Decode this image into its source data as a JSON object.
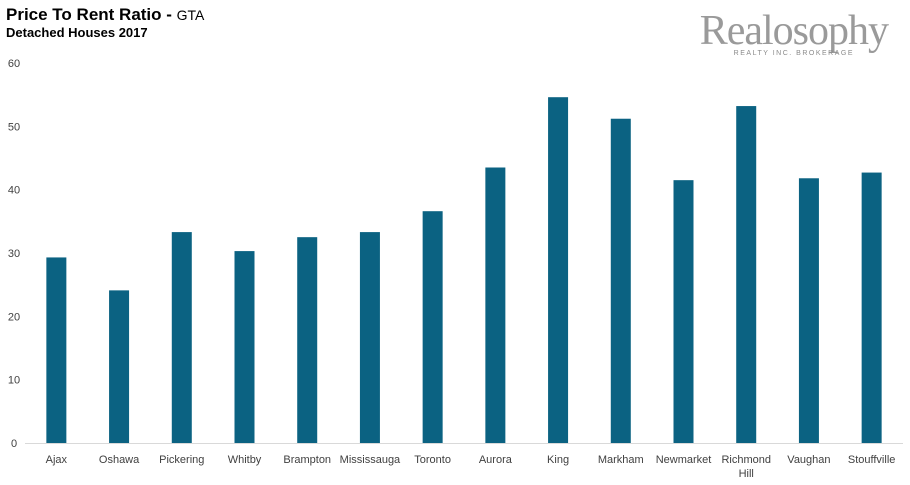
{
  "header": {
    "title": "Price To Rent Ratio - ",
    "title_suffix": "GTA",
    "subtitle": "Detached Houses 2017"
  },
  "logo": {
    "name": "Realosophy",
    "tagline": "REALTY INC. BROKERAGE"
  },
  "colors": {
    "bar": "#0b6282",
    "axis": "#d9d9d9",
    "text": "#404040"
  },
  "chart_data": {
    "type": "bar",
    "title": "Price To Rent Ratio - GTA",
    "subtitle": "Detached Houses 2017",
    "categories": [
      "Ajax",
      "Oshawa",
      "Pickering",
      "Whitby",
      "Brampton",
      "Mississauga",
      "Toronto",
      "Aurora",
      "King",
      "Markham",
      "Newmarket",
      "Richmond Hill",
      "Vaughan",
      "Stouffville"
    ],
    "values": [
      29.3,
      24.1,
      33.3,
      30.3,
      32.5,
      33.3,
      36.6,
      43.5,
      54.6,
      51.2,
      41.5,
      53.2,
      41.8,
      42.7
    ],
    "yticks": [
      0,
      10,
      20,
      30,
      40,
      50,
      60
    ],
    "ylim": [
      0,
      60
    ],
    "xlabel": "",
    "ylabel": "",
    "grid": false,
    "legend": "none"
  }
}
